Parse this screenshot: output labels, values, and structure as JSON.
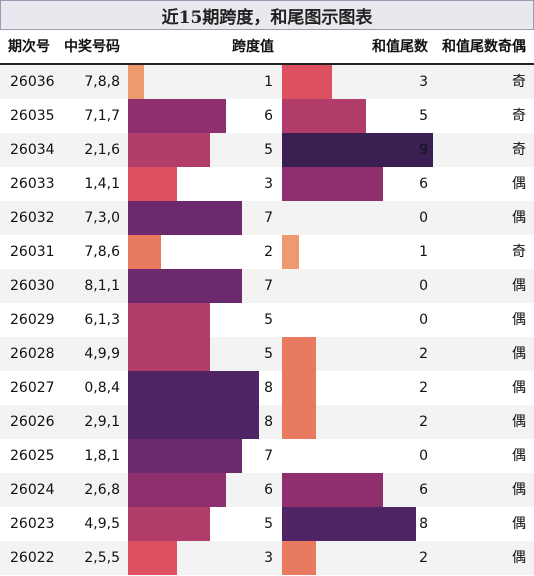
{
  "title": "近15期跨度，和尾图示图表",
  "headers": {
    "issue": "期次号",
    "numbers": "中奖号码",
    "span": "跨度值",
    "tail": "和值尾数",
    "oddeven": "和值尾数奇偶"
  },
  "max_value": 9,
  "colors": {
    "1": "#ee9a70",
    "2": "#e87a60",
    "3": "#dc5060",
    "5": "#b23c6a",
    "6": "#902f6e",
    "7": "#6c2a6c",
    "8": "#4e2464",
    "9": "#3a1f52"
  },
  "rows": [
    {
      "issue": "26036",
      "numbers": "7,8,8",
      "span": 1,
      "tail": 3,
      "oddeven": "奇"
    },
    {
      "issue": "26035",
      "numbers": "7,1,7",
      "span": 6,
      "tail": 5,
      "oddeven": "奇"
    },
    {
      "issue": "26034",
      "numbers": "2,1,6",
      "span": 5,
      "tail": 9,
      "oddeven": "奇"
    },
    {
      "issue": "26033",
      "numbers": "1,4,1",
      "span": 3,
      "tail": 6,
      "oddeven": "偶"
    },
    {
      "issue": "26032",
      "numbers": "7,3,0",
      "span": 7,
      "tail": 0,
      "oddeven": "偶"
    },
    {
      "issue": "26031",
      "numbers": "7,8,6",
      "span": 2,
      "tail": 1,
      "oddeven": "奇"
    },
    {
      "issue": "26030",
      "numbers": "8,1,1",
      "span": 7,
      "tail": 0,
      "oddeven": "偶"
    },
    {
      "issue": "26029",
      "numbers": "6,1,3",
      "span": 5,
      "tail": 0,
      "oddeven": "偶"
    },
    {
      "issue": "26028",
      "numbers": "4,9,9",
      "span": 5,
      "tail": 2,
      "oddeven": "偶"
    },
    {
      "issue": "26027",
      "numbers": "0,8,4",
      "span": 8,
      "tail": 2,
      "oddeven": "偶"
    },
    {
      "issue": "26026",
      "numbers": "2,9,1",
      "span": 8,
      "tail": 2,
      "oddeven": "偶"
    },
    {
      "issue": "26025",
      "numbers": "1,8,1",
      "span": 7,
      "tail": 0,
      "oddeven": "偶"
    },
    {
      "issue": "26024",
      "numbers": "2,6,8",
      "span": 6,
      "tail": 6,
      "oddeven": "偶"
    },
    {
      "issue": "26023",
      "numbers": "4,9,5",
      "span": 5,
      "tail": 8,
      "oddeven": "偶"
    },
    {
      "issue": "26022",
      "numbers": "2,5,5",
      "span": 3,
      "tail": 2,
      "oddeven": "偶"
    }
  ]
}
